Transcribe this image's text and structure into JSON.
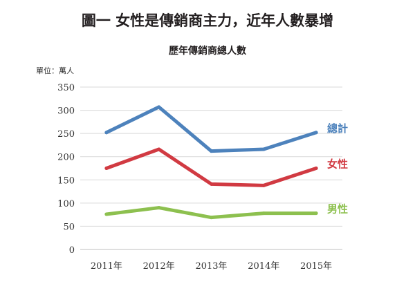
{
  "figure_title": "圖一 女性是傳銷商主力，近年人數暴增",
  "chart_data": {
    "type": "line",
    "title": "歷年傳銷商總人數",
    "unit_label": "單位：萬人",
    "xlabel": "",
    "ylabel": "",
    "categories": [
      "2011年",
      "2012年",
      "2013年",
      "2014年",
      "2015年"
    ],
    "ylim": [
      0,
      350
    ],
    "yticks": [
      0,
      50,
      100,
      150,
      200,
      250,
      300,
      350
    ],
    "grid": true,
    "series": [
      {
        "name": "總計",
        "values": [
          252,
          307,
          212,
          216,
          252
        ],
        "color": "#4d82bc"
      },
      {
        "name": "女性",
        "values": [
          175,
          216,
          141,
          138,
          175
        ],
        "color": "#d13a42"
      },
      {
        "name": "男性",
        "values": [
          76,
          90,
          69,
          78,
          78
        ],
        "color": "#8dc04f"
      }
    ]
  }
}
